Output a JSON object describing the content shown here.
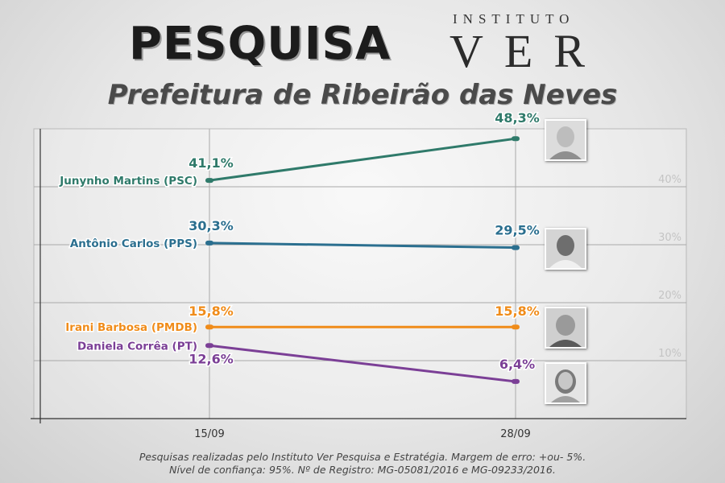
{
  "header": {
    "title": "PESQUISA",
    "brand_top": "INSTITUTO",
    "brand_main": "VER",
    "subtitle": "Prefeitura de Ribeirão das Neves"
  },
  "footer": {
    "line1": "Pesquisas realizadas pelo Instituto Ver Pesquisa e Estratégia. Margem de erro: +ou- 5%.",
    "line2": "Nível de confiança: 95%. Nº de Registro: MG-05081/2016 e MG-09233/2016."
  },
  "chart_data": {
    "type": "line",
    "x": [
      "15/09",
      "28/09"
    ],
    "y_ticks": [
      "10%",
      "20%",
      "30%",
      "40%"
    ],
    "ylim": [
      0,
      48
    ],
    "grid": true,
    "series": [
      {
        "name": "Junynho Martins (PSC)",
        "values": [
          41.1,
          48.3
        ],
        "labels": [
          "41,1%",
          "48,3%"
        ],
        "color": "#2f7a6a"
      },
      {
        "name": "Antônio Carlos (PPS)",
        "values": [
          30.3,
          29.5
        ],
        "labels": [
          "30,3%",
          "29,5%"
        ],
        "color": "#2b6f8f"
      },
      {
        "name": "Irani Barbosa (PMDB)",
        "values": [
          15.8,
          15.8
        ],
        "labels": [
          "15,8%",
          "15,8%"
        ],
        "color": "#f08c1a"
      },
      {
        "name": "Daniela Corrêa (PT)",
        "values": [
          12.6,
          6.4
        ],
        "labels": [
          "12,6%",
          "6,4%"
        ],
        "color": "#7b3f96"
      }
    ]
  }
}
